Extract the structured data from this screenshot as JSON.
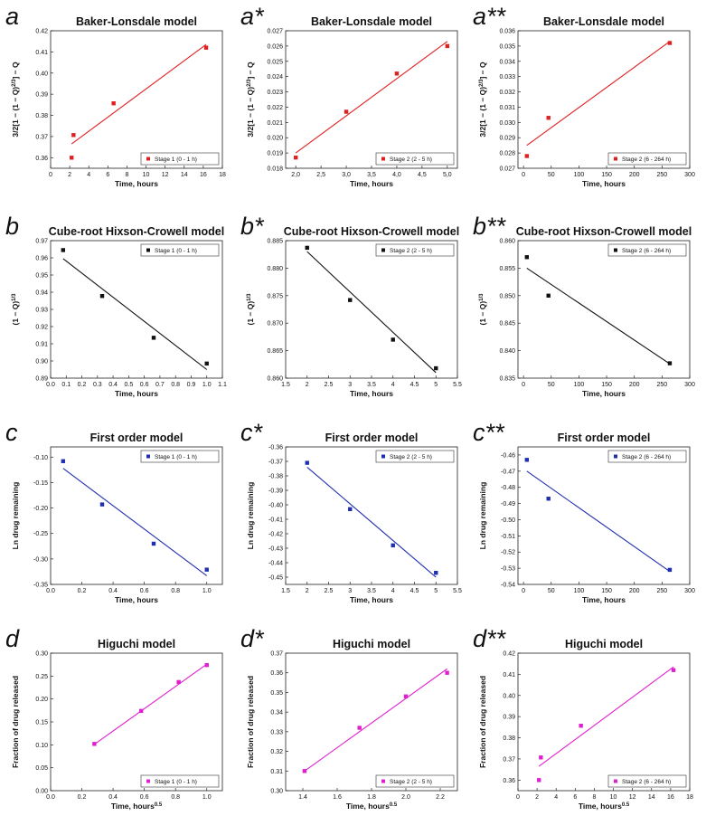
{
  "chart_data": [
    {
      "id": "a",
      "letter": "a",
      "title": "Baker-Lonsdale model",
      "type": "scatter",
      "xlabel": "Time, hours",
      "ylabel": "3/2[1 − (1 − Q)^2/3] − Q",
      "ylabel_parts": [
        "3/2[1 − (1 − Q)",
        "2/3",
        "] − Q"
      ],
      "xlim": [
        0,
        18
      ],
      "ylim": [
        0.355,
        0.42
      ],
      "xticks": [
        0,
        2,
        4,
        6,
        8,
        10,
        12,
        14,
        16,
        18
      ],
      "yticks": [
        0.36,
        0.37,
        0.38,
        0.39,
        0.4,
        0.41,
        0.42
      ],
      "ytick_labels": [
        "0.36",
        "0.37",
        "0.38",
        "0.39",
        "0.40",
        "0.41",
        "0.42"
      ],
      "color": "#e02020",
      "legend": "Stage 1 (0 - 1 h)",
      "legend_position": "bottom-right",
      "points": [
        [
          2.2,
          0.36
        ],
        [
          2.4,
          0.3707
        ],
        [
          6.6,
          0.3857
        ],
        [
          16.3,
          0.412
        ]
      ],
      "fit": [
        [
          2.2,
          0.3665
        ],
        [
          16.3,
          0.4135
        ]
      ]
    },
    {
      "id": "a1",
      "letter": "a*",
      "title": "Baker-Lonsdale model",
      "type": "scatter",
      "xlabel": "Time, hours",
      "ylabel": "3/2[1 − (1 − Q)^2/3] − Q",
      "ylabel_parts": [
        "3/2[1 − (1 − Q)",
        "2/3",
        "] − Q"
      ],
      "xlim": [
        1.8,
        5.2
      ],
      "ylim": [
        0.018,
        0.027
      ],
      "xticks": [
        2.0,
        2.5,
        3.0,
        3.5,
        4.0,
        4.5,
        5.0
      ],
      "xtick_labels": [
        "2,0",
        "2,5",
        "3,0",
        "3,5",
        "4,0",
        "4,5",
        "5,0"
      ],
      "yticks": [
        0.018,
        0.019,
        0.02,
        0.021,
        0.022,
        0.023,
        0.024,
        0.025,
        0.026,
        0.027
      ],
      "ytick_labels": [
        "0.018",
        "0.019",
        "0.020",
        "0.021",
        "0.022",
        "0.023",
        "0.024",
        "0.025",
        "0.026",
        "0.027"
      ],
      "color": "#e02020",
      "legend": "Stage 2 (2 - 5 h)",
      "legend_position": "bottom-right",
      "points": [
        [
          2.0,
          0.0187
        ],
        [
          3.0,
          0.0217
        ],
        [
          4.0,
          0.0242
        ],
        [
          5.0,
          0.026
        ]
      ],
      "fit": [
        [
          2.0,
          0.019
        ],
        [
          5.0,
          0.0263
        ]
      ]
    },
    {
      "id": "a2",
      "letter": "a**",
      "title": "Baker-Lonsdale model",
      "type": "scatter",
      "xlabel": "Time, hours",
      "ylabel": "3/2[1 − (1 − Q)^2/3] − Q",
      "ylabel_parts": [
        "3/2[1 − (1 − Q)",
        "2/3",
        "] − Q"
      ],
      "xlim": [
        -10,
        300
      ],
      "ylim": [
        0.027,
        0.036
      ],
      "xticks": [
        0,
        50,
        100,
        150,
        200,
        250,
        300
      ],
      "yticks": [
        0.027,
        0.028,
        0.029,
        0.03,
        0.031,
        0.032,
        0.033,
        0.034,
        0.035,
        0.036
      ],
      "ytick_labels": [
        "0.027",
        "0.028",
        "0.029",
        "0.030",
        "0.031",
        "0.032",
        "0.033",
        "0.034",
        "0.035",
        "0.036"
      ],
      "color": "#e02020",
      "legend": "Stage 2 (6 - 264 h)",
      "legend_position": "bottom-right",
      "points": [
        [
          6,
          0.0278
        ],
        [
          45,
          0.0303
        ],
        [
          264,
          0.0352
        ]
      ],
      "fit": [
        [
          6,
          0.0285
        ],
        [
          264,
          0.0353
        ]
      ]
    },
    {
      "id": "b",
      "letter": "b",
      "title": "Cube-root Hixson-Crowell model",
      "type": "scatter",
      "xlabel": "Time, hours",
      "ylabel": "(1 − Q)^1/3",
      "ylabel_parts": [
        "(1 − Q)",
        "1/3",
        ""
      ],
      "xlim": [
        0,
        1.1
      ],
      "ylim": [
        0.89,
        0.97
      ],
      "xticks": [
        0.0,
        0.1,
        0.2,
        0.3,
        0.4,
        0.5,
        0.6,
        0.7,
        0.8,
        0.9,
        1.0,
        1.1
      ],
      "yticks": [
        0.89,
        0.9,
        0.91,
        0.92,
        0.93,
        0.94,
        0.95,
        0.96,
        0.97
      ],
      "ytick_labels": [
        "0.89",
        "0.90",
        "0.91",
        "0.92",
        "0.93",
        "0.94",
        "0.95",
        "0.96",
        "0.97"
      ],
      "color": "#111111",
      "legend": "Stage 1 (0 - 1 h)",
      "legend_position": "top-right",
      "points": [
        [
          0.08,
          0.9645
        ],
        [
          0.33,
          0.9378
        ],
        [
          0.66,
          0.9135
        ],
        [
          1.0,
          0.8985
        ]
      ],
      "fit": [
        [
          0.08,
          0.9595
        ],
        [
          1.0,
          0.895
        ]
      ]
    },
    {
      "id": "b1",
      "letter": "b*",
      "title": "Cube-root Hixson-Crowell model",
      "type": "scatter",
      "xlabel": "Time, hours",
      "ylabel": "(1 − Q)^1/3",
      "ylabel_parts": [
        "(1 − Q)",
        "1/3",
        ""
      ],
      "xlim": [
        1.5,
        5.5
      ],
      "ylim": [
        0.86,
        0.885
      ],
      "xticks": [
        1.5,
        2.0,
        2.5,
        3.0,
        3.5,
        4.0,
        4.5,
        5.0,
        5.5
      ],
      "yticks": [
        0.86,
        0.865,
        0.87,
        0.875,
        0.88,
        0.885
      ],
      "ytick_labels": [
        "0.860",
        "0.865",
        "0.870",
        "0.875",
        "0.880",
        "0.885"
      ],
      "color": "#111111",
      "legend": "Stage 2 (2 - 5 h)",
      "legend_position": "top-right",
      "points": [
        [
          2.0,
          0.8837
        ],
        [
          3.0,
          0.8742
        ],
        [
          4.0,
          0.867
        ],
        [
          5.0,
          0.8618
        ]
      ],
      "fit": [
        [
          2.0,
          0.883
        ],
        [
          5.0,
          0.861
        ]
      ]
    },
    {
      "id": "b2",
      "letter": "b**",
      "title": "Cube-root Hixson-Crowell model",
      "type": "scatter",
      "xlabel": "Time, hours",
      "ylabel": "(1 − Q)^1/3",
      "ylabel_parts": [
        "(1 − Q)",
        "1/3",
        ""
      ],
      "xlim": [
        -10,
        300
      ],
      "ylim": [
        0.835,
        0.86
      ],
      "xticks": [
        0,
        50,
        100,
        150,
        200,
        250,
        300
      ],
      "yticks": [
        0.835,
        0.84,
        0.845,
        0.85,
        0.855,
        0.86
      ],
      "ytick_labels": [
        "0.835",
        "0.840",
        "0.845",
        "0.850",
        "0.855",
        "0.860"
      ],
      "color": "#111111",
      "legend": "Stage 2 (6 - 264 h)",
      "legend_position": "top-right",
      "points": [
        [
          6,
          0.857
        ],
        [
          45,
          0.85
        ],
        [
          264,
          0.8377
        ]
      ],
      "fit": [
        [
          6,
          0.855
        ],
        [
          264,
          0.8376
        ]
      ]
    },
    {
      "id": "c",
      "letter": "c",
      "title": "First order model",
      "type": "scatter",
      "xlabel": "Time, hours",
      "ylabel": "Ln drug remaining",
      "xlim": [
        0,
        1.1
      ],
      "ylim": [
        -0.35,
        -0.08
      ],
      "xticks": [
        0.0,
        0.2,
        0.4,
        0.6,
        0.8,
        1.0
      ],
      "yticks": [
        -0.35,
        -0.3,
        -0.25,
        -0.2,
        -0.15,
        -0.1
      ],
      "ytick_labels": [
        "-0.35",
        "-0.30",
        "-0.25",
        "-0.20",
        "-0.15",
        "-0.10"
      ],
      "color": "#1f2fb0",
      "legend": "Stage 1 (0 - 1 h)",
      "legend_position": "top-right",
      "points": [
        [
          0.08,
          -0.108
        ],
        [
          0.33,
          -0.193
        ],
        [
          0.66,
          -0.27
        ],
        [
          1.0,
          -0.321
        ]
      ],
      "fit": [
        [
          0.08,
          -0.122
        ],
        [
          1.0,
          -0.333
        ]
      ]
    },
    {
      "id": "c1",
      "letter": "c*",
      "title": "First order model",
      "type": "scatter",
      "xlabel": "Time, hours",
      "ylabel": "Ln drug remaining",
      "xlim": [
        1.5,
        5.5
      ],
      "ylim": [
        -0.455,
        -0.36
      ],
      "xticks": [
        1.5,
        2.0,
        2.5,
        3.0,
        3.5,
        4.0,
        4.5,
        5.0,
        5.5
      ],
      "yticks": [
        -0.45,
        -0.44,
        -0.43,
        -0.42,
        -0.41,
        -0.4,
        -0.39,
        -0.38,
        -0.37,
        -0.36
      ],
      "ytick_labels": [
        "-0.45",
        "-0.44",
        "-0.43",
        "-0.42",
        "-0.41",
        "-0.40",
        "-0.39",
        "-0.38",
        "-0.37",
        "-0.36"
      ],
      "color": "#1f2fb0",
      "legend": "Stage 2 (2 - 5 h)",
      "legend_position": "top-right",
      "points": [
        [
          2.0,
          -0.371
        ],
        [
          3.0,
          -0.403
        ],
        [
          4.0,
          -0.428
        ],
        [
          5.0,
          -0.447
        ]
      ],
      "fit": [
        [
          2.0,
          -0.374
        ],
        [
          5.0,
          -0.45
        ]
      ]
    },
    {
      "id": "c2",
      "letter": "c**",
      "title": "First order model",
      "type": "scatter",
      "xlabel": "Time, hours",
      "ylabel": "Ln drug remaining",
      "xlim": [
        -10,
        300
      ],
      "ylim": [
        -0.54,
        -0.455
      ],
      "xticks": [
        0,
        50,
        100,
        150,
        200,
        250,
        300
      ],
      "yticks": [
        -0.54,
        -0.53,
        -0.52,
        -0.51,
        -0.5,
        -0.49,
        -0.48,
        -0.47,
        -0.46
      ],
      "ytick_labels": [
        "-0.54",
        "-0.53",
        "-0.52",
        "-0.51",
        "-0.50",
        "-0.49",
        "-0.48",
        "-0.47",
        "-0.46"
      ],
      "color": "#1f2fb0",
      "legend": "Stage 2 (6 - 264 h)",
      "legend_position": "top-right",
      "points": [
        [
          6,
          -0.463
        ],
        [
          45,
          -0.487
        ],
        [
          264,
          -0.531
        ]
      ],
      "fit": [
        [
          6,
          -0.47
        ],
        [
          264,
          -0.532
        ]
      ]
    },
    {
      "id": "d",
      "letter": "d",
      "title": "Higuchi model",
      "type": "scatter",
      "xlabel": "Time, hours^0.5",
      "xlabel_parts": [
        "Time, hours",
        "0.5"
      ],
      "ylabel": "Fraction of drug released",
      "xlim": [
        0,
        1.1
      ],
      "ylim": [
        0,
        0.3
      ],
      "xticks": [
        0.0,
        0.2,
        0.4,
        0.6,
        0.8,
        1.0
      ],
      "yticks": [
        0.0,
        0.05,
        0.1,
        0.15,
        0.2,
        0.25,
        0.3
      ],
      "ytick_labels": [
        "0.00",
        "0.05",
        "0.10",
        "0.15",
        "0.20",
        "0.25",
        "0.30"
      ],
      "color": "#e020d0",
      "legend": "Stage 1 (0 - 1 h)",
      "legend_position": "bottom-right",
      "points": [
        [
          0.28,
          0.102
        ],
        [
          0.58,
          0.174
        ],
        [
          0.82,
          0.237
        ],
        [
          1.0,
          0.274
        ]
      ],
      "fit": [
        [
          0.28,
          0.101
        ],
        [
          1.0,
          0.276
        ]
      ]
    },
    {
      "id": "d1",
      "letter": "d*",
      "title": "Higuchi model",
      "type": "scatter",
      "xlabel": "Time, hours^0.5",
      "xlabel_parts": [
        "Time, hours",
        "0.5"
      ],
      "ylabel": "Fraction of drug released",
      "xlim": [
        1.3,
        2.3
      ],
      "ylim": [
        0.3,
        0.37
      ],
      "xticks": [
        1.4,
        1.6,
        1.8,
        2.0,
        2.2
      ],
      "yticks": [
        0.3,
        0.31,
        0.32,
        0.33,
        0.34,
        0.35,
        0.36,
        0.37
      ],
      "ytick_labels": [
        "0.30",
        "0.31",
        "0.32",
        "0.33",
        "0.34",
        "0.35",
        "0.36",
        "0.37"
      ],
      "color": "#e020d0",
      "legend": "Stage 2 (2 - 5 h)",
      "legend_position": "bottom-right",
      "points": [
        [
          1.41,
          0.31
        ],
        [
          1.73,
          0.332
        ],
        [
          2.0,
          0.348
        ],
        [
          2.24,
          0.36
        ]
      ],
      "fit": [
        [
          1.41,
          0.31
        ],
        [
          2.24,
          0.362
        ]
      ]
    },
    {
      "id": "d2",
      "letter": "d**",
      "title": "Higuchi model",
      "type": "scatter",
      "xlabel": "Time, hours^0.5",
      "xlabel_parts": [
        "Time, hours",
        "0.5"
      ],
      "ylabel": "Fraction of drug released",
      "xlim": [
        0,
        18
      ],
      "ylim": [
        0.355,
        0.42
      ],
      "xticks": [
        0,
        2,
        4,
        6,
        8,
        10,
        12,
        14,
        16,
        18
      ],
      "yticks": [
        0.36,
        0.37,
        0.38,
        0.39,
        0.4,
        0.41,
        0.42
      ],
      "ytick_labels": [
        "0.36",
        "0.37",
        "0.38",
        "0.39",
        "0.40",
        "0.41",
        "0.42"
      ],
      "color": "#e020d0",
      "legend": "Stage 2 (6 - 264 h)",
      "legend_position": "bottom-right",
      "points": [
        [
          2.2,
          0.36
        ],
        [
          2.4,
          0.3707
        ],
        [
          6.6,
          0.3857
        ],
        [
          16.3,
          0.412
        ]
      ],
      "fit": [
        [
          2.2,
          0.3665
        ],
        [
          16.3,
          0.4135
        ]
      ]
    }
  ]
}
